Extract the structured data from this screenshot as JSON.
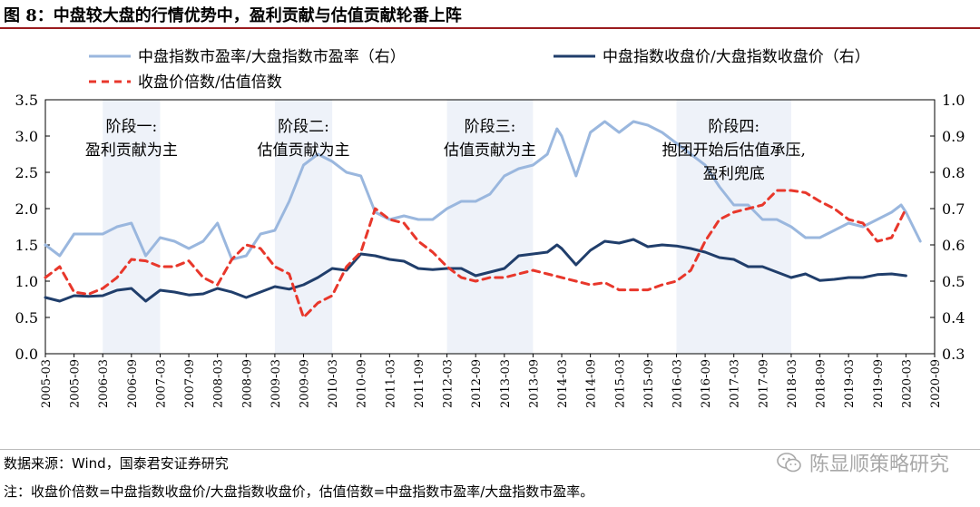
{
  "header": {
    "figure_title": "图 8：中盘较大盘的行情优势中，盈利贡献与估值贡献轮番上阵"
  },
  "footer": {
    "source": "数据来源：Wind，国泰君安证券研究",
    "note": "注：收盘价倍数=中盘指数收盘价/大盘指数收盘价，估值倍数=中盘指数市盈率/大盘指数市盈率。",
    "brand_text": "陈显顺策略研究",
    "brand_icon": "wechat-icon"
  },
  "colors": {
    "pe_ratio": "#9ab7de",
    "close_ratio": "#203e6b",
    "multiple": "#e8372b",
    "shade": "#eef2f9"
  },
  "chart_data": {
    "type": "line",
    "x_tick_labels": [
      "2005-03",
      "2005-09",
      "2006-03",
      "2006-09",
      "2007-03",
      "2007-09",
      "2008-03",
      "2008-09",
      "2009-03",
      "2009-09",
      "2010-03",
      "2010-09",
      "2011-03",
      "2011-09",
      "2012-03",
      "2012-09",
      "2013-03",
      "2013-09",
      "2014-03",
      "2014-09",
      "2015-03",
      "2015-09",
      "2016-03",
      "2016-09",
      "2017-03",
      "2017-09",
      "2018-03",
      "2018-09",
      "2019-03",
      "2019-09",
      "2020-03",
      "2020-09"
    ],
    "left_axis": {
      "ylim": [
        0,
        3.5
      ],
      "ticks": [
        "0.0",
        "0.5",
        "1.0",
        "1.5",
        "2.0",
        "2.5",
        "3.0",
        "3.5"
      ]
    },
    "right_axis": {
      "ylim": [
        0.3,
        1.0
      ],
      "ticks": [
        "0.3",
        "0.4",
        "0.5",
        "0.6",
        "0.7",
        "0.8",
        "0.9",
        "1.0"
      ]
    },
    "legend": [
      {
        "label": "中盘指数市盈率/大盘指数市盈率（右）",
        "series": "pe_ratio"
      },
      {
        "label": "中盘指数收盘价/大盘指数收盘价（右）",
        "series": "close_ratio"
      },
      {
        "label": "收盘价倍数/估值倍数",
        "series": "multiple"
      }
    ],
    "stages": [
      {
        "label": [
          "阶段一:",
          "盈利贡献为主"
        ],
        "from_index": 12,
        "to_index": 24
      },
      {
        "label": [
          "阶段二:",
          "估值贡献为主"
        ],
        "from_index": 48,
        "to_index": 60
      },
      {
        "label": [
          "阶段三:",
          "估值贡献为主"
        ],
        "from_index": 84,
        "to_index": 102
      },
      {
        "label": [
          "阶段四:",
          "抱团开始后估值承压,",
          "盈利兜底"
        ],
        "from_index": 132,
        "to_index": 156
      }
    ],
    "series": [
      {
        "key": "pe_ratio",
        "axis": "right",
        "points": [
          [
            0,
            0.6
          ],
          [
            3,
            0.57
          ],
          [
            6,
            0.63
          ],
          [
            9,
            0.63
          ],
          [
            12,
            0.63
          ],
          [
            15,
            0.65
          ],
          [
            18,
            0.66
          ],
          [
            21,
            0.57
          ],
          [
            24,
            0.62
          ],
          [
            27,
            0.61
          ],
          [
            30,
            0.59
          ],
          [
            33,
            0.61
          ],
          [
            36,
            0.66
          ],
          [
            39,
            0.56
          ],
          [
            42,
            0.57
          ],
          [
            45,
            0.63
          ],
          [
            48,
            0.64
          ],
          [
            51,
            0.72
          ],
          [
            54,
            0.82
          ],
          [
            57,
            0.85
          ],
          [
            60,
            0.83
          ],
          [
            63,
            0.8
          ],
          [
            66,
            0.79
          ],
          [
            69,
            0.69
          ],
          [
            72,
            0.67
          ],
          [
            75,
            0.68
          ],
          [
            78,
            0.67
          ],
          [
            81,
            0.67
          ],
          [
            84,
            0.7
          ],
          [
            87,
            0.72
          ],
          [
            90,
            0.72
          ],
          [
            93,
            0.74
          ],
          [
            96,
            0.79
          ],
          [
            99,
            0.81
          ],
          [
            102,
            0.82
          ],
          [
            105,
            0.85
          ],
          [
            107,
            0.92
          ],
          [
            108,
            0.9
          ],
          [
            111,
            0.79
          ],
          [
            114,
            0.91
          ],
          [
            117,
            0.94
          ],
          [
            120,
            0.91
          ],
          [
            123,
            0.94
          ],
          [
            126,
            0.93
          ],
          [
            129,
            0.91
          ],
          [
            132,
            0.88
          ],
          [
            135,
            0.85
          ],
          [
            138,
            0.82
          ],
          [
            141,
            0.76
          ],
          [
            144,
            0.71
          ],
          [
            147,
            0.71
          ],
          [
            150,
            0.67
          ],
          [
            153,
            0.67
          ],
          [
            156,
            0.65
          ],
          [
            159,
            0.62
          ],
          [
            162,
            0.62
          ],
          [
            165,
            0.64
          ],
          [
            168,
            0.66
          ],
          [
            171,
            0.65
          ],
          [
            174,
            0.67
          ],
          [
            177,
            0.69
          ],
          [
            179,
            0.71
          ],
          [
            180,
            0.69
          ],
          [
            183,
            0.61
          ]
        ]
      },
      {
        "key": "close_ratio",
        "axis": "right",
        "points": [
          [
            0,
            0.455
          ],
          [
            3,
            0.445
          ],
          [
            6,
            0.46
          ],
          [
            9,
            0.458
          ],
          [
            12,
            0.46
          ],
          [
            15,
            0.475
          ],
          [
            18,
            0.48
          ],
          [
            21,
            0.445
          ],
          [
            24,
            0.475
          ],
          [
            27,
            0.47
          ],
          [
            30,
            0.462
          ],
          [
            33,
            0.465
          ],
          [
            36,
            0.48
          ],
          [
            39,
            0.47
          ],
          [
            42,
            0.455
          ],
          [
            45,
            0.47
          ],
          [
            48,
            0.485
          ],
          [
            51,
            0.478
          ],
          [
            54,
            0.49
          ],
          [
            57,
            0.51
          ],
          [
            60,
            0.535
          ],
          [
            63,
            0.53
          ],
          [
            66,
            0.575
          ],
          [
            69,
            0.57
          ],
          [
            72,
            0.56
          ],
          [
            75,
            0.555
          ],
          [
            78,
            0.535
          ],
          [
            81,
            0.532
          ],
          [
            84,
            0.535
          ],
          [
            87,
            0.535
          ],
          [
            90,
            0.515
          ],
          [
            93,
            0.525
          ],
          [
            96,
            0.535
          ],
          [
            99,
            0.57
          ],
          [
            102,
            0.575
          ],
          [
            105,
            0.58
          ],
          [
            107,
            0.6
          ],
          [
            108,
            0.59
          ],
          [
            111,
            0.545
          ],
          [
            114,
            0.585
          ],
          [
            117,
            0.61
          ],
          [
            120,
            0.605
          ],
          [
            123,
            0.615
          ],
          [
            126,
            0.595
          ],
          [
            129,
            0.6
          ],
          [
            132,
            0.597
          ],
          [
            135,
            0.59
          ],
          [
            138,
            0.58
          ],
          [
            141,
            0.565
          ],
          [
            144,
            0.56
          ],
          [
            147,
            0.54
          ],
          [
            150,
            0.54
          ],
          [
            153,
            0.525
          ],
          [
            156,
            0.51
          ],
          [
            159,
            0.52
          ],
          [
            162,
            0.502
          ],
          [
            165,
            0.505
          ],
          [
            168,
            0.51
          ],
          [
            171,
            0.51
          ],
          [
            174,
            0.518
          ],
          [
            177,
            0.52
          ],
          [
            180,
            0.515
          ]
        ]
      },
      {
        "key": "multiple",
        "axis": "left",
        "points": [
          [
            0,
            1.05
          ],
          [
            3,
            1.2
          ],
          [
            6,
            0.85
          ],
          [
            9,
            0.82
          ],
          [
            12,
            0.9
          ],
          [
            15,
            1.05
          ],
          [
            18,
            1.3
          ],
          [
            21,
            1.28
          ],
          [
            24,
            1.2
          ],
          [
            27,
            1.2
          ],
          [
            30,
            1.28
          ],
          [
            33,
            1.05
          ],
          [
            36,
            0.95
          ],
          [
            39,
            1.3
          ],
          [
            42,
            1.5
          ],
          [
            45,
            1.45
          ],
          [
            48,
            1.2
          ],
          [
            51,
            1.1
          ],
          [
            54,
            0.5
          ],
          [
            57,
            0.7
          ],
          [
            60,
            0.8
          ],
          [
            63,
            1.2
          ],
          [
            66,
            1.4
          ],
          [
            69,
            2.0
          ],
          [
            72,
            1.85
          ],
          [
            75,
            1.8
          ],
          [
            78,
            1.55
          ],
          [
            81,
            1.4
          ],
          [
            84,
            1.2
          ],
          [
            87,
            1.05
          ],
          [
            90,
            1.0
          ],
          [
            93,
            1.05
          ],
          [
            96,
            1.05
          ],
          [
            99,
            1.1
          ],
          [
            102,
            1.15
          ],
          [
            105,
            1.1
          ],
          [
            108,
            1.05
          ],
          [
            111,
            1.0
          ],
          [
            114,
            0.95
          ],
          [
            117,
            0.98
          ],
          [
            120,
            0.88
          ],
          [
            123,
            0.88
          ],
          [
            126,
            0.88
          ],
          [
            129,
            0.95
          ],
          [
            132,
            1.0
          ],
          [
            135,
            1.15
          ],
          [
            138,
            1.55
          ],
          [
            141,
            1.85
          ],
          [
            144,
            1.95
          ],
          [
            147,
            2.0
          ],
          [
            150,
            2.05
          ],
          [
            153,
            2.25
          ],
          [
            156,
            2.25
          ],
          [
            159,
            2.22
          ],
          [
            162,
            2.1
          ],
          [
            165,
            2.0
          ],
          [
            168,
            1.85
          ],
          [
            171,
            1.8
          ],
          [
            174,
            1.55
          ],
          [
            177,
            1.6
          ],
          [
            180,
            2.0
          ]
        ]
      }
    ]
  }
}
